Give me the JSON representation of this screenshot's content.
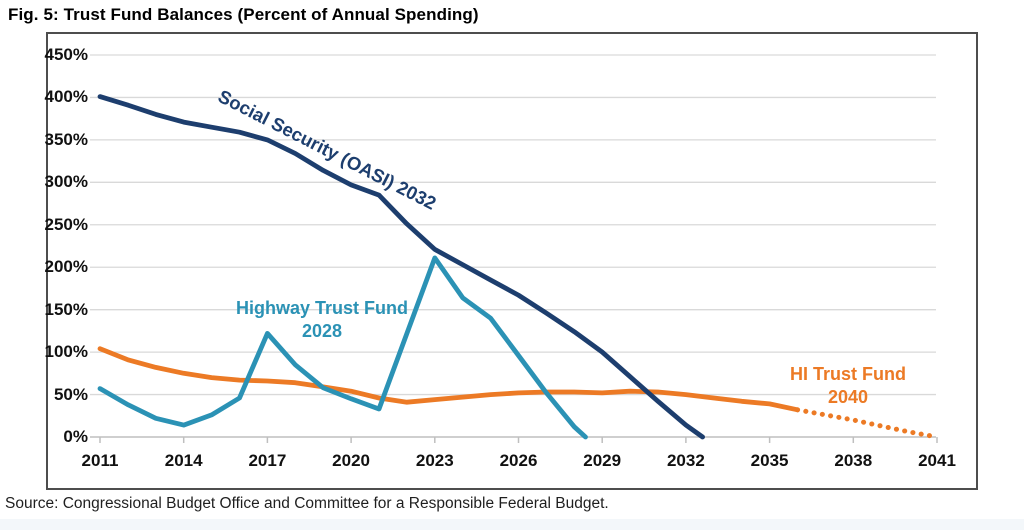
{
  "title": "Fig. 5: Trust Fund Balances (Percent of Annual Spending)",
  "source": "Source: Congressional Budget Office and Committee for a Responsible Federal Budget.",
  "colors": {
    "social_security": "#1d3e6e",
    "highway": "#2b92b5",
    "hi_fund": "#ec7a25",
    "gridline": "#d9d9d9",
    "axis": "#bfbfbf",
    "border": "#4d4d4d"
  },
  "chart_data": {
    "type": "line",
    "title": "Fig. 5: Trust Fund Balances (Percent of Annual Spending)",
    "xlabel": "",
    "ylabel": "",
    "xlim": [
      2011,
      2041
    ],
    "ylim": [
      0,
      450
    ],
    "grid": "horizontal",
    "legend_position": "inline-annotations",
    "y_ticks": [
      {
        "v": 450,
        "label": "450%"
      },
      {
        "v": 400,
        "label": "400%"
      },
      {
        "v": 350,
        "label": "350%"
      },
      {
        "v": 300,
        "label": "300%"
      },
      {
        "v": 250,
        "label": "250%"
      },
      {
        "v": 200,
        "label": "200%"
      },
      {
        "v": 150,
        "label": "150%"
      },
      {
        "v": 100,
        "label": "100%"
      },
      {
        "v": 50,
        "label": "50%"
      },
      {
        "v": 0,
        "label": "0%"
      }
    ],
    "x_ticks": [
      {
        "v": 2011,
        "label": "2011"
      },
      {
        "v": 2014,
        "label": "2014"
      },
      {
        "v": 2017,
        "label": "2017"
      },
      {
        "v": 2020,
        "label": "2020"
      },
      {
        "v": 2023,
        "label": "2023"
      },
      {
        "v": 2026,
        "label": "2026"
      },
      {
        "v": 2029,
        "label": "2029"
      },
      {
        "v": 2032,
        "label": "2032"
      },
      {
        "v": 2035,
        "label": "2035"
      },
      {
        "v": 2038,
        "label": "2038"
      },
      {
        "v": 2041,
        "label": "2041"
      }
    ],
    "series": [
      {
        "name": "HI Trust Fund",
        "depletion_year": "2040",
        "color": "#ec7a25",
        "style": "solid",
        "points": [
          [
            2011,
            104
          ],
          [
            2012,
            91
          ],
          [
            2013,
            82
          ],
          [
            2014,
            75
          ],
          [
            2015,
            70
          ],
          [
            2016,
            67
          ],
          [
            2017,
            66
          ],
          [
            2018,
            64
          ],
          [
            2019,
            59
          ],
          [
            2020,
            54
          ],
          [
            2021,
            46
          ],
          [
            2022,
            41
          ],
          [
            2023,
            44
          ],
          [
            2024,
            47
          ],
          [
            2025,
            50
          ],
          [
            2026,
            52
          ],
          [
            2027,
            53
          ],
          [
            2028,
            53
          ],
          [
            2029,
            52
          ],
          [
            2030,
            54
          ],
          [
            2031,
            53
          ],
          [
            2032,
            50
          ],
          [
            2033,
            46
          ],
          [
            2034,
            42
          ],
          [
            2035,
            39
          ],
          [
            2036,
            32
          ]
        ]
      },
      {
        "name": "HI Trust Fund (projected)",
        "depletion_year": "2040",
        "color": "#ec7a25",
        "style": "dotted",
        "points": [
          [
            2036,
            32
          ],
          [
            2037,
            26
          ],
          [
            2038,
            20
          ],
          [
            2039,
            13
          ],
          [
            2040,
            6
          ],
          [
            2041,
            0
          ]
        ]
      },
      {
        "name": "Highway Trust Fund",
        "depletion_year": "2028",
        "color": "#2b92b5",
        "style": "solid",
        "points": [
          [
            2011,
            57
          ],
          [
            2012,
            38
          ],
          [
            2013,
            22
          ],
          [
            2014,
            14
          ],
          [
            2015,
            26
          ],
          [
            2016,
            46
          ],
          [
            2017,
            122
          ],
          [
            2018,
            85
          ],
          [
            2019,
            58
          ],
          [
            2020,
            45
          ],
          [
            2021,
            33
          ],
          [
            2022,
            122
          ],
          [
            2023,
            211
          ],
          [
            2024,
            164
          ],
          [
            2025,
            140
          ],
          [
            2026,
            96
          ],
          [
            2027,
            52
          ],
          [
            2028,
            12
          ],
          [
            2028.4,
            0
          ]
        ]
      },
      {
        "name": "Social Security (OASI)",
        "depletion_year": "2032",
        "color": "#1d3e6e",
        "style": "solid",
        "points": [
          [
            2011,
            401
          ],
          [
            2012,
            391
          ],
          [
            2013,
            380
          ],
          [
            2014,
            371
          ],
          [
            2015,
            365
          ],
          [
            2016,
            359
          ],
          [
            2017,
            350
          ],
          [
            2018,
            334
          ],
          [
            2019,
            314
          ],
          [
            2020,
            297
          ],
          [
            2021,
            285
          ],
          [
            2022,
            251
          ],
          [
            2023,
            221
          ],
          [
            2024,
            203
          ],
          [
            2025,
            185
          ],
          [
            2026,
            167
          ],
          [
            2027,
            146
          ],
          [
            2028,
            124
          ],
          [
            2029,
            100
          ],
          [
            2030,
            71
          ],
          [
            2031,
            42
          ],
          [
            2032,
            14
          ],
          [
            2032.6,
            0
          ]
        ]
      }
    ],
    "annotations": [
      {
        "text": "Social Security (OASI) 2032",
        "x": 327,
        "y": 150,
        "rotation": 27,
        "color": "#1d3e6e"
      },
      {
        "line1": "Highway Trust Fund",
        "line2": "2028",
        "x": 322,
        "y": 297,
        "color": "#2b92b5"
      },
      {
        "line1": "HI Trust Fund",
        "line2": "2040",
        "x": 848,
        "y": 363,
        "color": "#ec7a25"
      }
    ]
  }
}
